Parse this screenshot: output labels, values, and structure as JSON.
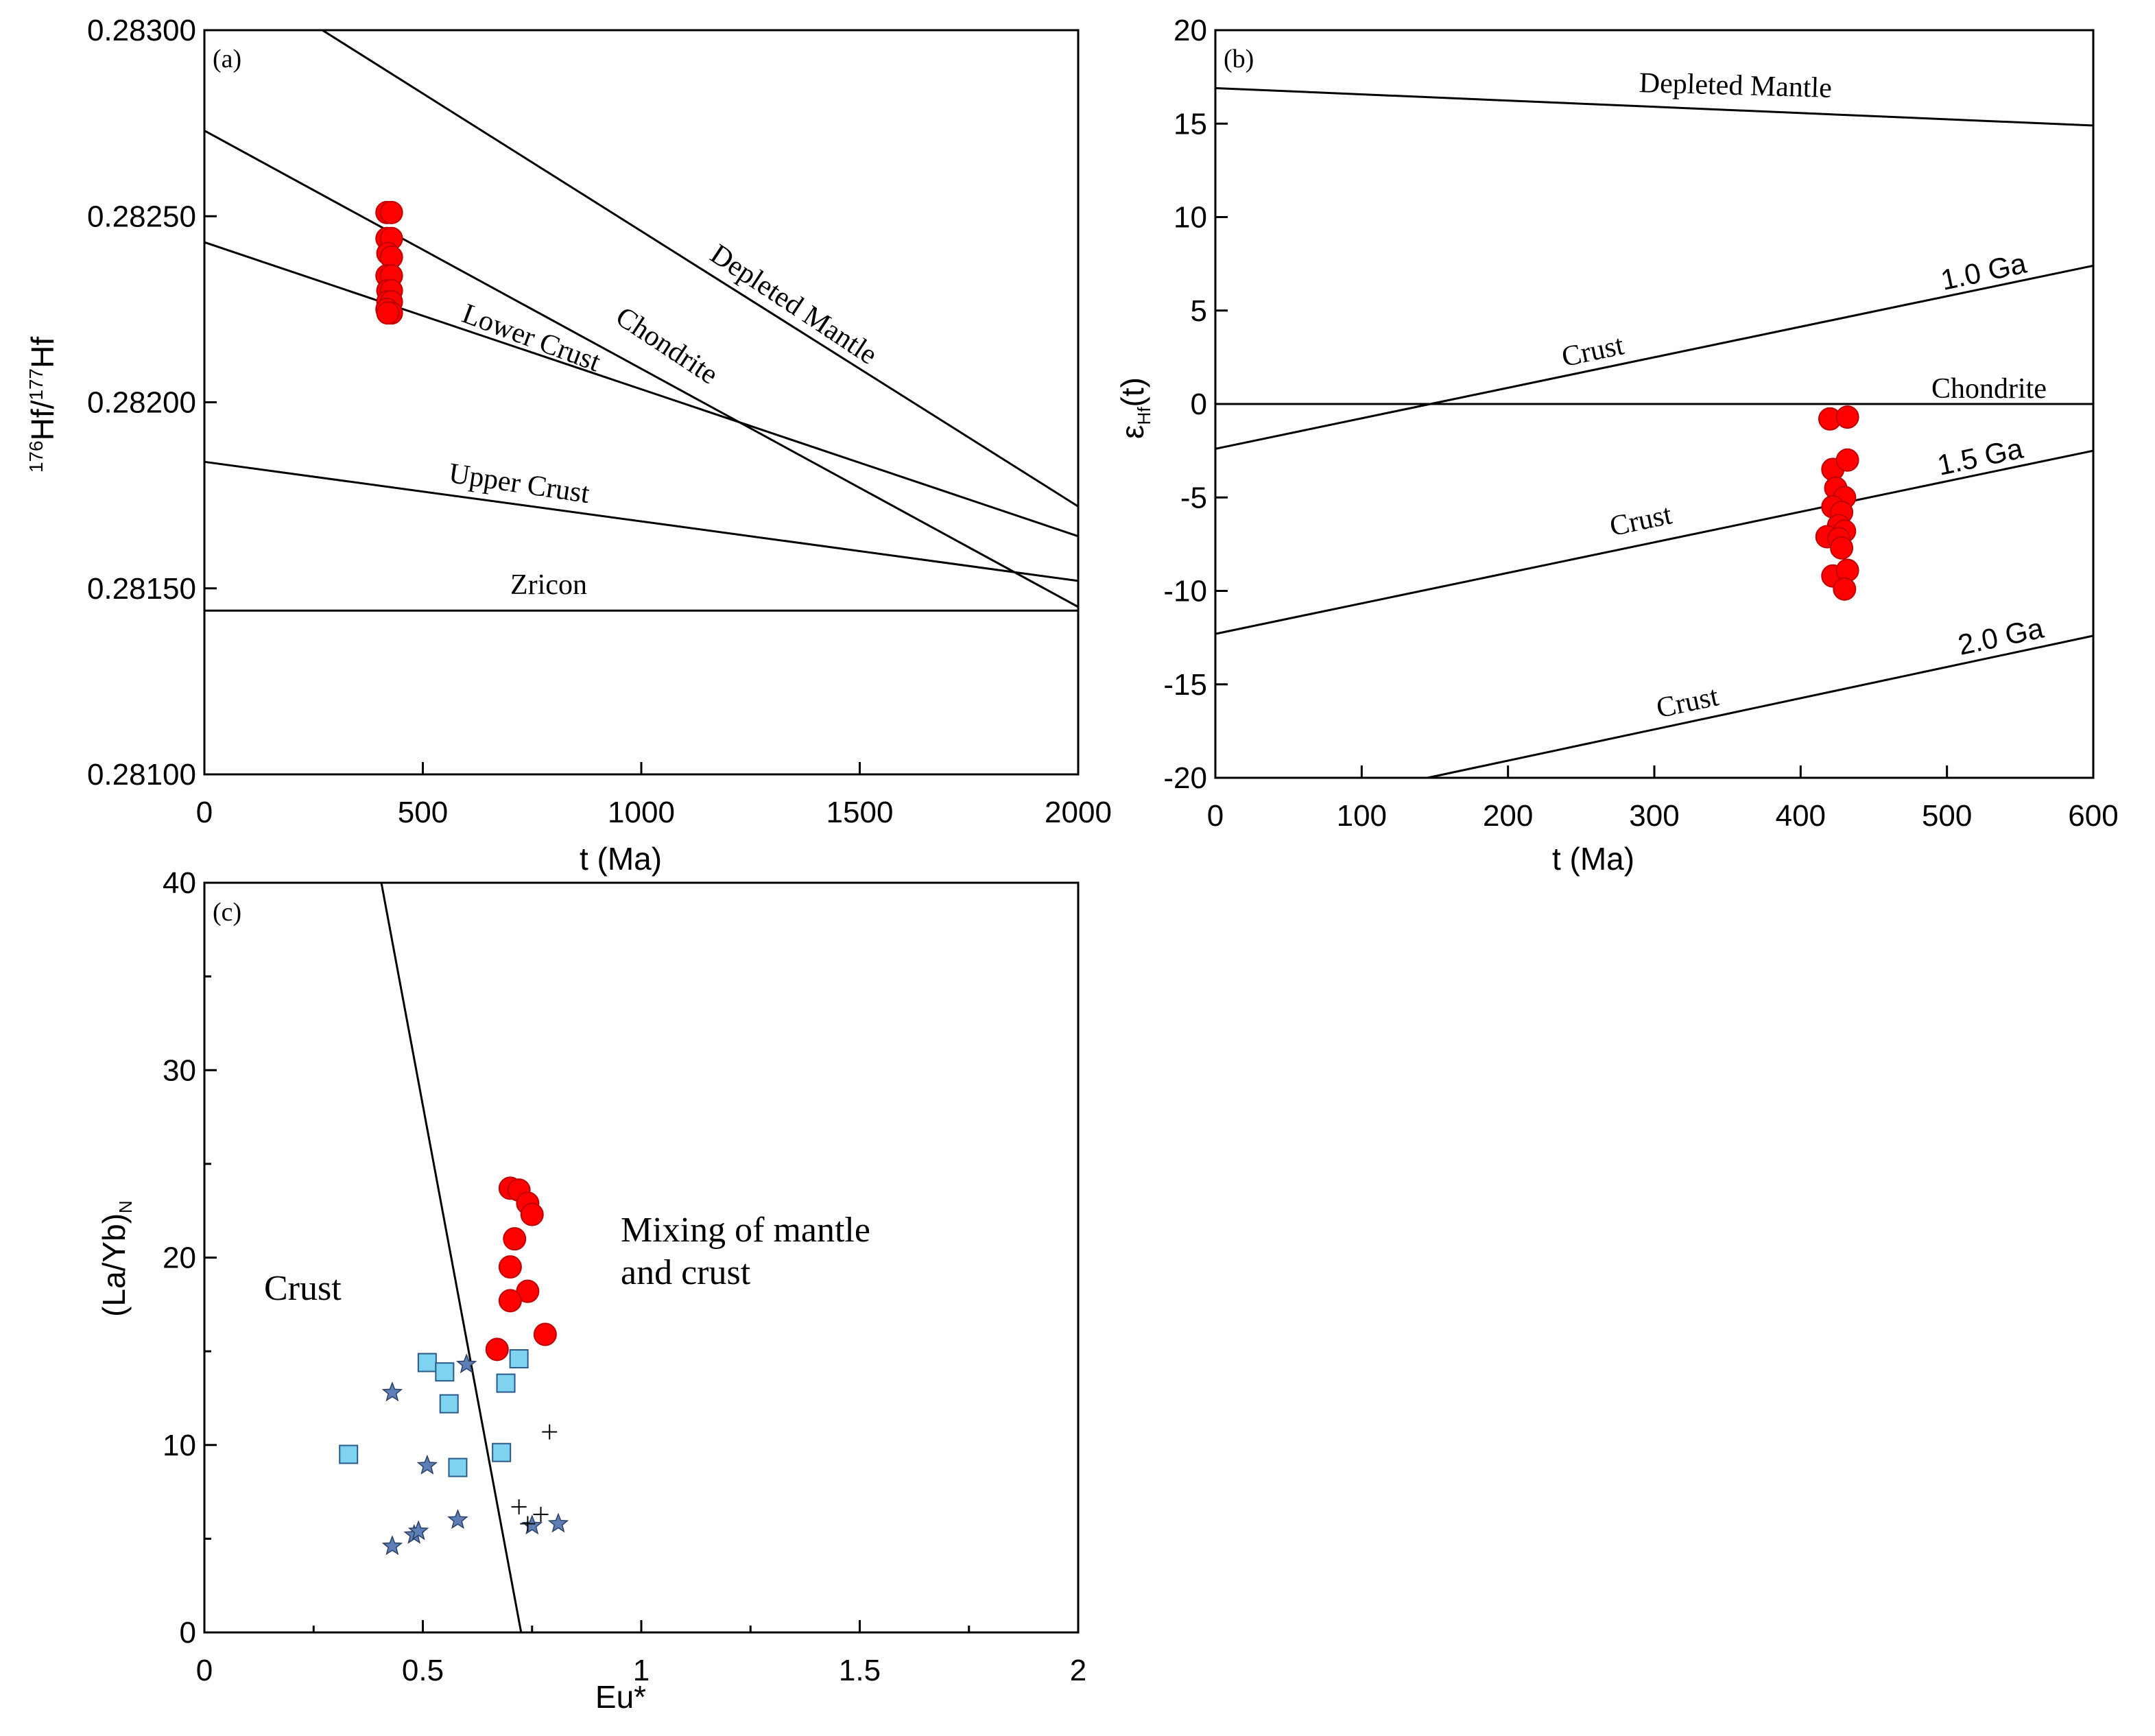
{
  "chart_data": [
    {
      "id": "a",
      "type": "line",
      "panel_label": "(a)",
      "xlabel": "t (Ma)",
      "ylabel": "176Hf/177Hf",
      "ylabel_parts": [
        "176",
        "Hf/",
        "177",
        "Hf"
      ],
      "xlim": [
        0,
        2000
      ],
      "ylim": [
        0.281,
        0.283
      ],
      "xticks": [
        0,
        500,
        1000,
        1500,
        2000
      ],
      "xtick_labels": [
        "0",
        "500",
        "1000",
        "1500",
        "2000"
      ],
      "yticks": [
        0.281,
        0.2815,
        0.282,
        0.2825,
        0.283
      ],
      "ytick_labels": [
        "0.28100",
        "0.28150",
        "0.28200",
        "0.28250",
        "0.28300"
      ],
      "series": [
        {
          "name": "Depleted Mantle",
          "x": [
            270,
            2000
          ],
          "y": [
            0.283,
            0.28172
          ]
        },
        {
          "name": "Chondrite",
          "x": [
            0,
            2000
          ],
          "y": [
            0.28273,
            0.28145
          ]
        },
        {
          "name": "Lower Crust",
          "x": [
            0,
            2000
          ],
          "y": [
            0.28243,
            0.28164
          ]
        },
        {
          "name": "Upper Crust",
          "x": [
            0,
            2000
          ],
          "y": [
            0.28184,
            0.28152
          ]
        },
        {
          "name": "Zricon",
          "x": [
            0,
            2000
          ],
          "y": [
            0.28144,
            0.28144
          ]
        }
      ],
      "points": {
        "name": "Samples",
        "color": "#ff0000",
        "x": [
          418,
          428,
          418,
          428,
          420,
          428,
          418,
          428,
          420,
          428,
          420,
          428,
          418,
          428,
          420
        ],
        "y": [
          0.28251,
          0.28251,
          0.28244,
          0.28244,
          0.2824,
          0.28239,
          0.28234,
          0.28234,
          0.2823,
          0.2823,
          0.28227,
          0.28227,
          0.28225,
          0.28224,
          0.28224
        ]
      }
    },
    {
      "id": "b",
      "type": "line",
      "panel_label": "(b)",
      "xlabel": "t (Ma)",
      "ylabel": "εHf(t)",
      "ylabel_parts": [
        "ε",
        "Hf",
        "(t)"
      ],
      "xlim": [
        0,
        600
      ],
      "ylim": [
        -20,
        20
      ],
      "xticks": [
        0,
        100,
        200,
        300,
        400,
        500,
        600
      ],
      "xtick_labels": [
        "0",
        "100",
        "200",
        "300",
        "400",
        "500",
        "600"
      ],
      "yticks": [
        -20,
        -15,
        -10,
        -5,
        0,
        5,
        10,
        15,
        20
      ],
      "ytick_labels": [
        "-20",
        "-15",
        "-10",
        "-5",
        "0",
        "5",
        "10",
        "15",
        "20"
      ],
      "series": [
        {
          "name": "Depleted Mantle",
          "x": [
            0,
            600
          ],
          "y": [
            16.9,
            14.9
          ]
        },
        {
          "name": "Chondrite",
          "x": [
            0,
            600
          ],
          "y": [
            0,
            0
          ]
        },
        {
          "name": "1.0 Ga Crust",
          "x": [
            0,
            600
          ],
          "y": [
            -2.4,
            7.4
          ]
        },
        {
          "name": "1.5 Ga Crust",
          "x": [
            0,
            600
          ],
          "y": [
            -12.3,
            -2.5
          ]
        },
        {
          "name": "2.0 Ga Crust",
          "x": [
            145,
            600
          ],
          "y": [
            -20.0,
            -12.4
          ]
        }
      ],
      "points": {
        "name": "Samples",
        "color": "#ff0000",
        "x": [
          420,
          432,
          422,
          432,
          424,
          430,
          422,
          428,
          426,
          430,
          418,
          426,
          428,
          422,
          432,
          430
        ],
        "y": [
          -0.8,
          -0.7,
          -3.5,
          -3.0,
          -4.5,
          -5.0,
          -5.5,
          -5.8,
          -6.5,
          -6.8,
          -7.1,
          -7.2,
          -7.7,
          -9.2,
          -8.9,
          -9.9
        ]
      },
      "labels": {
        "depleted_mantle": "Depleted Mantle",
        "chondrite": "Chondrite",
        "ga10": "1.0 Ga",
        "ga15": "1.5 Ga",
        "ga20": "2.0 Ga",
        "crust": "Crust"
      }
    },
    {
      "id": "c",
      "type": "scatter",
      "panel_label": "(c)",
      "xlabel": "Eu*",
      "ylabel": "(La/Yb)N",
      "ylabel_parts": [
        "(La/Yb)",
        "N"
      ],
      "xlim": [
        0,
        2
      ],
      "ylim": [
        0,
        40
      ],
      "xticks": [
        0,
        0.5,
        1,
        1.5,
        2
      ],
      "xtick_labels": [
        "0",
        "0.5",
        "1",
        "1.5",
        "2"
      ],
      "yticks": [
        0,
        10,
        20,
        30,
        40
      ],
      "ytick_labels": [
        "0",
        "10",
        "20",
        "30",
        "40"
      ],
      "divider": {
        "x": [
          0.405,
          0.725
        ],
        "y": [
          40,
          0
        ]
      },
      "region_labels": {
        "crust": "Crust",
        "mixing_line1": "Mixing of mantle",
        "mixing_line2": "and crust"
      },
      "series": [
        {
          "name": "Samples (circles)",
          "marker": "circle",
          "color": "#ff0000",
          "x": [
            0.7,
            0.72,
            0.74,
            0.75,
            0.71,
            0.7,
            0.74,
            0.7,
            0.67,
            0.78
          ],
          "y": [
            23.7,
            23.6,
            22.9,
            22.3,
            21.0,
            19.5,
            18.2,
            17.7,
            15.1,
            15.9
          ]
        },
        {
          "name": "Squares",
          "marker": "square",
          "color": "#7fd3f0",
          "x": [
            0.33,
            0.51,
            0.55,
            0.56,
            0.58,
            0.68,
            0.69,
            0.72
          ],
          "y": [
            9.5,
            14.4,
            13.9,
            12.2,
            8.8,
            9.6,
            13.3,
            14.6
          ]
        },
        {
          "name": "Stars",
          "marker": "star",
          "color": "#5d7fb5",
          "x": [
            0.43,
            0.43,
            0.51,
            0.48,
            0.49,
            0.58,
            0.6,
            0.75,
            0.81
          ],
          "y": [
            12.8,
            4.6,
            8.9,
            5.2,
            5.4,
            6.0,
            14.3,
            5.7,
            5.8
          ]
        },
        {
          "name": "Crosses",
          "marker": "plus",
          "color": "#000000",
          "x": [
            0.79,
            0.72,
            0.77,
            0.74
          ],
          "y": [
            10.7,
            6.7,
            6.3,
            5.8
          ]
        }
      ]
    }
  ]
}
